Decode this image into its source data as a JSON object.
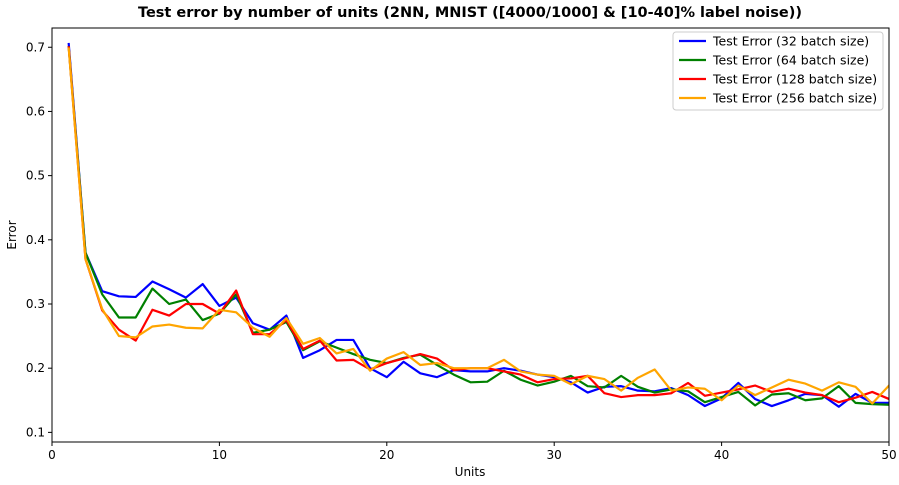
{
  "chart_data": {
    "type": "line",
    "title": "Test error by number of units (2NN, MNIST ([4000/1000] & [10-40]% label noise))",
    "xlabel": "Units",
    "ylabel": "Error",
    "xlim": [
      0,
      50
    ],
    "ylim": [
      0.085,
      0.73
    ],
    "xticks": [
      0,
      10,
      20,
      30,
      40,
      50
    ],
    "yticks": [
      0.1,
      0.2,
      0.3,
      0.4,
      0.5,
      0.6,
      0.7
    ],
    "grid": false,
    "legend_position": "top-right",
    "x": [
      1,
      2,
      3,
      4,
      5,
      6,
      7,
      8,
      9,
      10,
      11,
      12,
      13,
      14,
      15,
      16,
      17,
      18,
      19,
      20,
      21,
      22,
      23,
      24,
      25,
      26,
      27,
      28,
      29,
      30,
      31,
      32,
      33,
      34,
      35,
      36,
      37,
      38,
      39,
      40,
      41,
      42,
      43,
      44,
      45,
      46,
      47,
      48,
      49,
      50
    ],
    "series": [
      {
        "name": "Test Error (32 batch size)",
        "color": "#0000ff",
        "values": [
          0.705,
          0.38,
          0.32,
          0.312,
          0.311,
          0.335,
          0.323,
          0.31,
          0.331,
          0.297,
          0.31,
          0.27,
          0.26,
          0.282,
          0.216,
          0.228,
          0.244,
          0.244,
          0.2,
          0.186,
          0.21,
          0.192,
          0.186,
          0.197,
          0.195,
          0.195,
          0.2,
          0.196,
          0.19,
          0.186,
          0.178,
          0.162,
          0.171,
          0.172,
          0.165,
          0.164,
          0.169,
          0.158,
          0.141,
          0.153,
          0.177,
          0.152,
          0.141,
          0.15,
          0.16,
          0.158,
          0.14,
          0.16,
          0.146,
          0.146
        ]
      },
      {
        "name": "Test Error (64 batch size)",
        "color": "#008000",
        "values": [
          0.7,
          0.38,
          0.315,
          0.279,
          0.279,
          0.324,
          0.3,
          0.307,
          0.275,
          0.285,
          0.315,
          0.255,
          0.26,
          0.272,
          0.228,
          0.242,
          0.232,
          0.222,
          0.213,
          0.208,
          0.216,
          0.221,
          0.205,
          0.19,
          0.178,
          0.179,
          0.196,
          0.182,
          0.173,
          0.179,
          0.188,
          0.172,
          0.17,
          0.188,
          0.171,
          0.162,
          0.167,
          0.164,
          0.147,
          0.155,
          0.163,
          0.142,
          0.159,
          0.161,
          0.15,
          0.153,
          0.172,
          0.146,
          0.144,
          0.143
        ]
      },
      {
        "name": "Test Error (128 batch size)",
        "color": "#ff0000",
        "values": [
          0.7,
          0.37,
          0.29,
          0.26,
          0.243,
          0.291,
          0.282,
          0.3,
          0.3,
          0.285,
          0.321,
          0.253,
          0.253,
          0.275,
          0.23,
          0.243,
          0.212,
          0.213,
          0.198,
          0.208,
          0.215,
          0.222,
          0.215,
          0.197,
          0.2,
          0.2,
          0.195,
          0.19,
          0.178,
          0.183,
          0.184,
          0.188,
          0.161,
          0.155,
          0.158,
          0.158,
          0.161,
          0.177,
          0.157,
          0.162,
          0.167,
          0.173,
          0.163,
          0.168,
          0.162,
          0.158,
          0.147,
          0.154,
          0.163,
          0.152
        ]
      },
      {
        "name": "Test Error (256 batch size)",
        "color": "#ffa500",
        "values": [
          0.698,
          0.37,
          0.292,
          0.25,
          0.248,
          0.265,
          0.268,
          0.263,
          0.262,
          0.291,
          0.287,
          0.263,
          0.249,
          0.278,
          0.238,
          0.247,
          0.223,
          0.23,
          0.196,
          0.215,
          0.225,
          0.205,
          0.208,
          0.2,
          0.2,
          0.2,
          0.213,
          0.195,
          0.19,
          0.188,
          0.175,
          0.188,
          0.183,
          0.165,
          0.185,
          0.198,
          0.165,
          0.17,
          0.168,
          0.15,
          0.173,
          0.158,
          0.17,
          0.182,
          0.176,
          0.165,
          0.178,
          0.171,
          0.145,
          0.173
        ]
      }
    ]
  }
}
